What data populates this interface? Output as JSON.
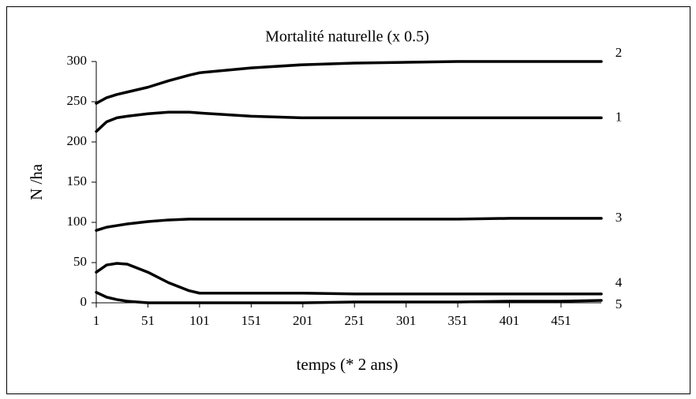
{
  "chart_data": {
    "type": "line",
    "title": "Mortalité naturelle (x 0.5)",
    "x_label": "temps (* 2 ans)",
    "y_label": "N /ha",
    "x": [
      1,
      11,
      21,
      31,
      51,
      71,
      91,
      101,
      151,
      201,
      251,
      301,
      351,
      401,
      451,
      490
    ],
    "series": [
      {
        "name": "2",
        "color": "#000000",
        "values": [
          248,
          255,
          259,
          262,
          268,
          276,
          283,
          286,
          292,
          296,
          298,
          299,
          300,
          300,
          300,
          300
        ]
      },
      {
        "name": "1",
        "color": "#000000",
        "values": [
          213,
          225,
          230,
          232,
          235,
          237,
          237,
          236,
          232,
          230,
          230,
          230,
          230,
          230,
          230,
          230
        ]
      },
      {
        "name": "3",
        "color": "#000000",
        "values": [
          90,
          94,
          96,
          98,
          101,
          103,
          104,
          104,
          104,
          104,
          104,
          104,
          104,
          105,
          105,
          105
        ]
      },
      {
        "name": "4",
        "color": "#000000",
        "values": [
          38,
          47,
          49,
          48,
          38,
          25,
          15,
          12,
          12,
          12,
          11,
          11,
          11,
          11,
          11,
          11
        ]
      },
      {
        "name": "5",
        "color": "#000000",
        "values": [
          13,
          7,
          4,
          2,
          0,
          0,
          0,
          0,
          0,
          0,
          1,
          1,
          1,
          2,
          2,
          3
        ]
      }
    ],
    "xlim": [
      1,
      490
    ],
    "xticks": [
      1,
      51,
      101,
      151,
      201,
      251,
      301,
      351,
      401,
      451
    ],
    "ylim": [
      0,
      300
    ],
    "yticks": [
      0,
      50,
      100,
      150,
      200,
      250,
      300
    ],
    "grid": false
  }
}
